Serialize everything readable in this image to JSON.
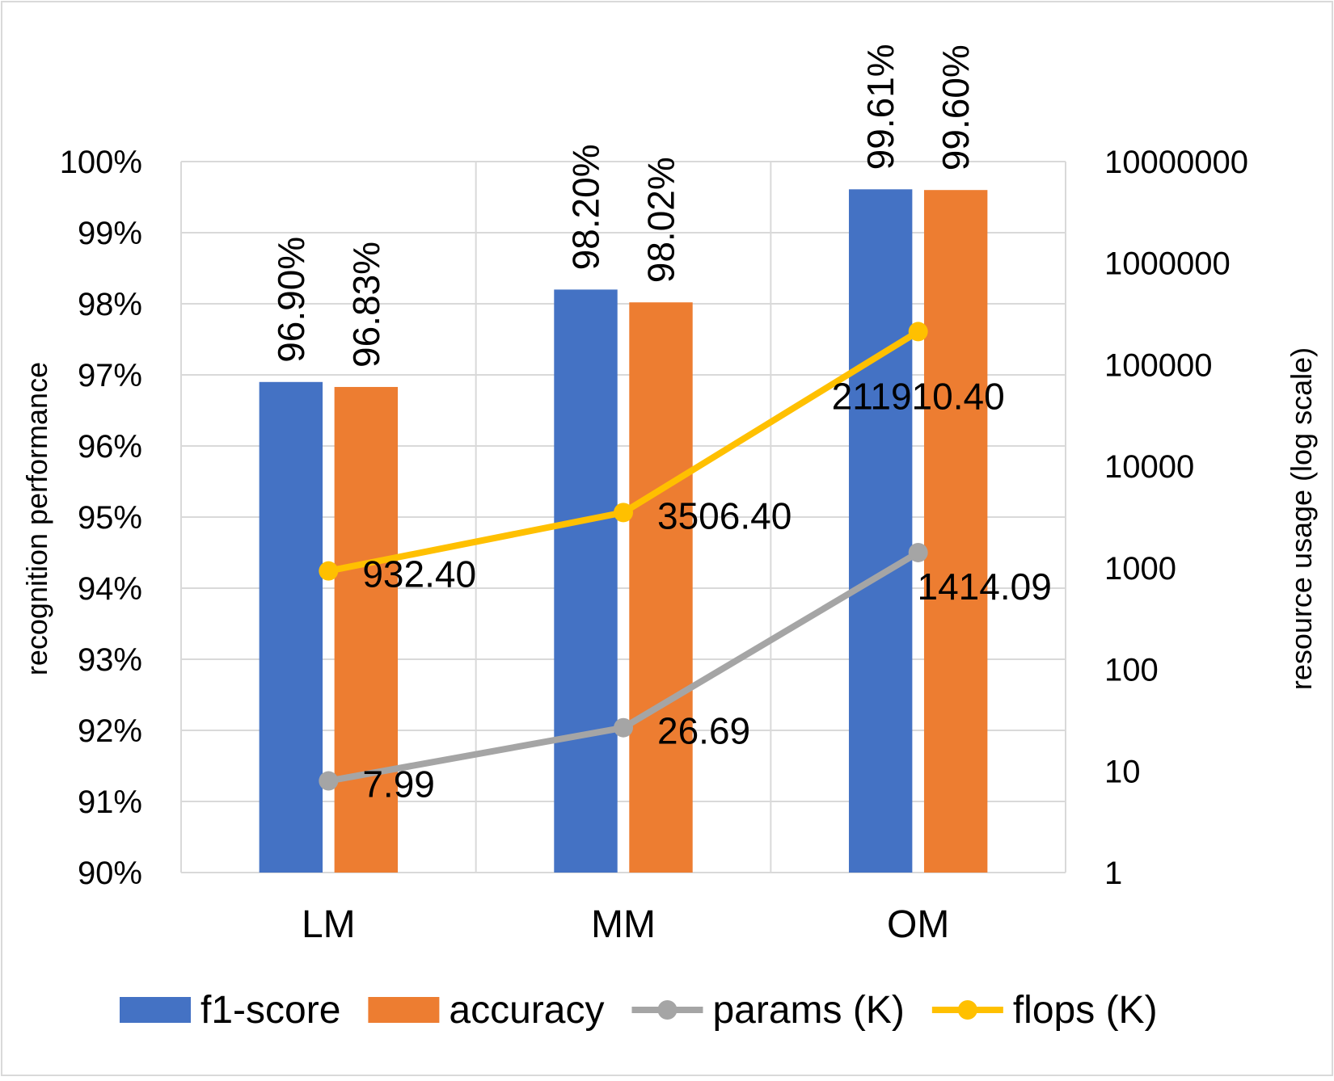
{
  "chart_data": {
    "type": "bar",
    "categories": [
      "LM",
      "MM",
      "OM"
    ],
    "series": [
      {
        "name": "f1-score",
        "kind": "bar",
        "axis": "left",
        "values": [
          96.9,
          98.2,
          99.61
        ],
        "labels": [
          "96.90%",
          "98.20%",
          "99.61%"
        ],
        "color": "#4472C4"
      },
      {
        "name": "accuracy",
        "kind": "bar",
        "axis": "left",
        "values": [
          96.83,
          98.02,
          99.6
        ],
        "labels": [
          "96.83%",
          "98.02%",
          "99.60%"
        ],
        "color": "#ED7D31"
      },
      {
        "name": "params (K)",
        "kind": "line",
        "axis": "right",
        "values": [
          7.99,
          26.69,
          1414.09
        ],
        "labels": [
          "7.99",
          "26.69",
          "1414.09"
        ],
        "color": "#A5A5A5"
      },
      {
        "name": "flops (K)",
        "kind": "line",
        "axis": "right",
        "values": [
          932.4,
          3506.4,
          211910.4
        ],
        "labels": [
          "932.40",
          "3506.40",
          "211910.40"
        ],
        "color": "#FFC000"
      }
    ],
    "ylabel": "recognition performance",
    "y2label": "resource usage  (log scale)",
    "ylim": [
      90,
      100
    ],
    "y2lim": [
      1,
      10000000
    ],
    "y2scale": "log",
    "yticks": [
      "90%",
      "91%",
      "92%",
      "93%",
      "94%",
      "95%",
      "96%",
      "97%",
      "98%",
      "99%",
      "100%"
    ],
    "y2ticks": [
      "1",
      "10",
      "100",
      "1000",
      "10000",
      "100000",
      "1000000",
      "10000000"
    ],
    "grid": true,
    "legend": "bottom"
  }
}
